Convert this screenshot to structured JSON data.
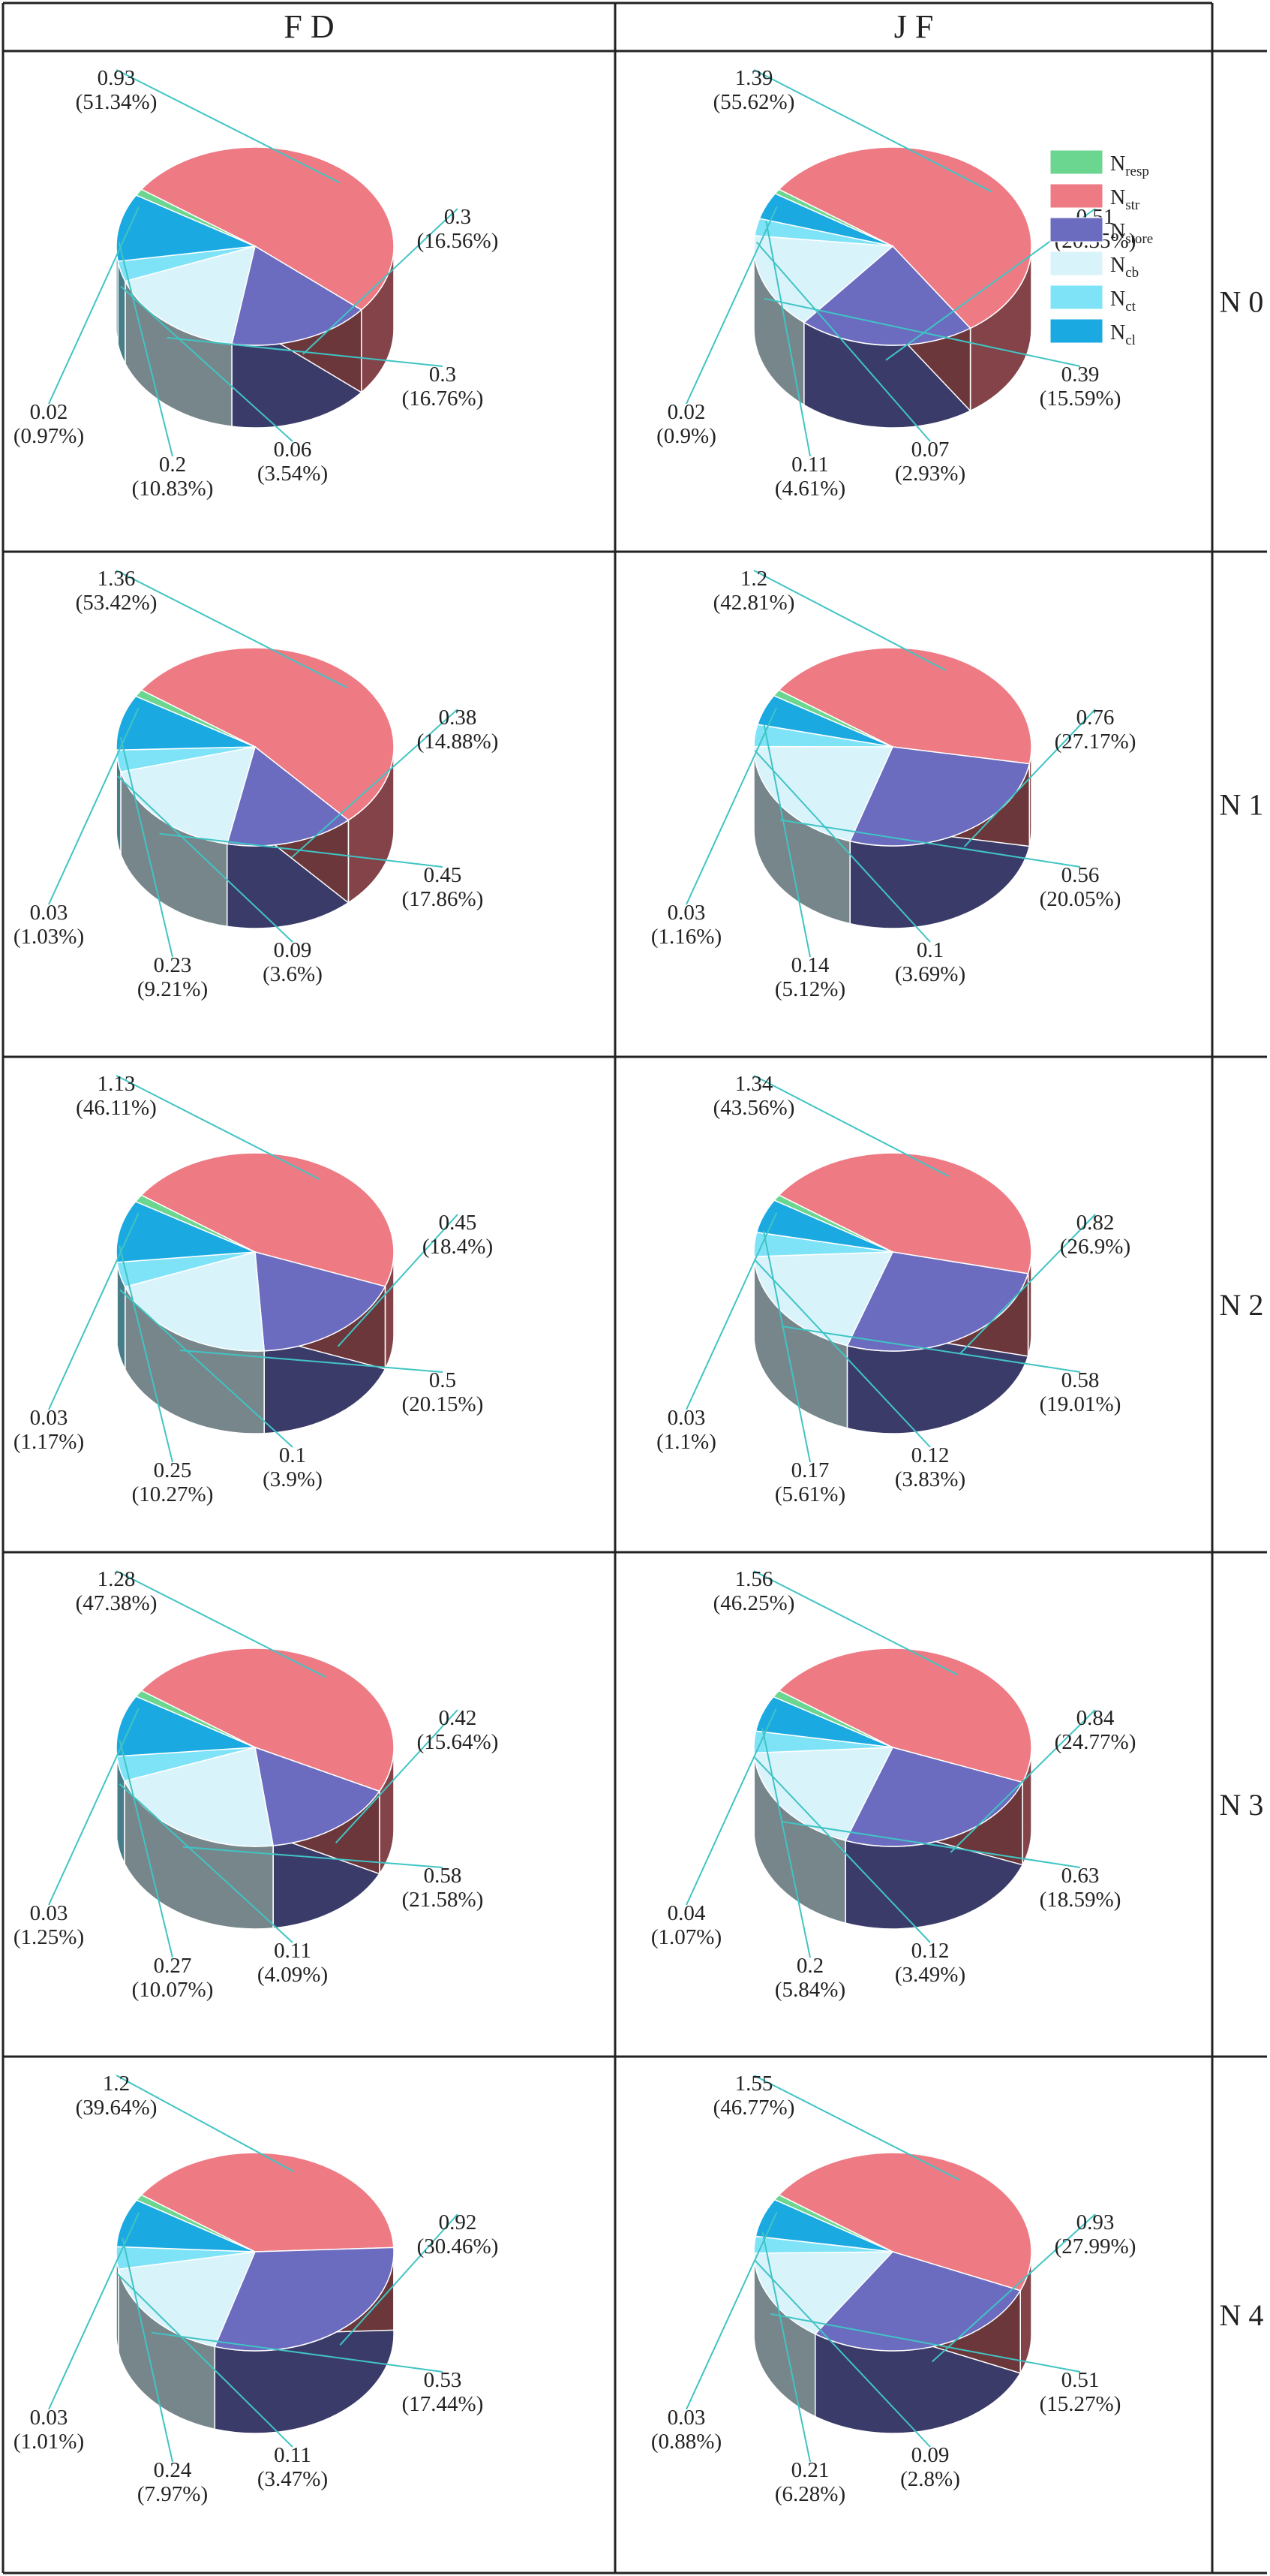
{
  "columns": [
    "F D",
    "J F"
  ],
  "rows": [
    "N 0",
    "N 1",
    "N 2",
    "N 3",
    "N 4"
  ],
  "legend": [
    {
      "base": "N",
      "sub": "resp",
      "color": "#6bd68f"
    },
    {
      "base": "N",
      "sub": "str",
      "color": "#ee7a84"
    },
    {
      "base": "N",
      "sub": "store",
      "color": "#6b6bc0"
    },
    {
      "base": "N",
      "sub": "cb",
      "color": "#d9f3fb"
    },
    {
      "base": "N",
      "sub": "ct",
      "color": "#7fe3f8"
    },
    {
      "base": "N",
      "sub": "cl",
      "color": "#1ba9e1"
    }
  ],
  "chart_data": [
    {
      "type": "pie",
      "column": "F D",
      "row": "N 0",
      "slices": [
        {
          "series": "str",
          "value": 0.93,
          "label": "(51.34%)"
        },
        {
          "series": "store",
          "value": 0.3,
          "label": "(16.56%)"
        },
        {
          "series": "cb",
          "value": 0.3,
          "label": "(16.76%)"
        },
        {
          "series": "ct",
          "value": 0.06,
          "label": "(3.54%)"
        },
        {
          "series": "cl",
          "value": 0.2,
          "label": "(10.83%)"
        },
        {
          "series": "resp",
          "value": 0.02,
          "label": "(0.97%)"
        }
      ]
    },
    {
      "type": "pie",
      "column": "J F",
      "row": "N 0",
      "slices": [
        {
          "series": "str",
          "value": 1.39,
          "label": "(55.62%)"
        },
        {
          "series": "store",
          "value": 0.51,
          "label": "(20.35%)"
        },
        {
          "series": "cb",
          "value": 0.39,
          "label": "(15.59%)"
        },
        {
          "series": "ct",
          "value": 0.07,
          "label": "(2.93%)"
        },
        {
          "series": "cl",
          "value": 0.11,
          "label": "(4.61%)"
        },
        {
          "series": "resp",
          "value": 0.02,
          "label": "(0.9%)"
        }
      ]
    },
    {
      "type": "pie",
      "column": "F D",
      "row": "N 1",
      "slices": [
        {
          "series": "str",
          "value": 1.36,
          "label": "(53.42%)"
        },
        {
          "series": "store",
          "value": 0.38,
          "label": "(14.88%)"
        },
        {
          "series": "cb",
          "value": 0.45,
          "label": "(17.86%)"
        },
        {
          "series": "ct",
          "value": 0.09,
          "label": "(3.6%)"
        },
        {
          "series": "cl",
          "value": 0.23,
          "label": "(9.21%)"
        },
        {
          "series": "resp",
          "value": 0.03,
          "label": "(1.03%)"
        }
      ]
    },
    {
      "type": "pie",
      "column": "J F",
      "row": "N 1",
      "slices": [
        {
          "series": "str",
          "value": 1.2,
          "label": "(42.81%)"
        },
        {
          "series": "store",
          "value": 0.76,
          "label": "(27.17%)"
        },
        {
          "series": "cb",
          "value": 0.56,
          "label": "(20.05%)"
        },
        {
          "series": "ct",
          "value": 0.1,
          "label": "(3.69%)"
        },
        {
          "series": "cl",
          "value": 0.14,
          "label": "(5.12%)"
        },
        {
          "series": "resp",
          "value": 0.03,
          "label": "(1.16%)"
        }
      ]
    },
    {
      "type": "pie",
      "column": "F D",
      "row": "N 2",
      "slices": [
        {
          "series": "str",
          "value": 1.13,
          "label": "(46.11%)"
        },
        {
          "series": "store",
          "value": 0.45,
          "label": "(18.4%)"
        },
        {
          "series": "cb",
          "value": 0.5,
          "label": "(20.15%)"
        },
        {
          "series": "ct",
          "value": 0.1,
          "label": "(3.9%)"
        },
        {
          "series": "cl",
          "value": 0.25,
          "label": "(10.27%)"
        },
        {
          "series": "resp",
          "value": 0.03,
          "label": "(1.17%)"
        }
      ]
    },
    {
      "type": "pie",
      "column": "J F",
      "row": "N 2",
      "slices": [
        {
          "series": "str",
          "value": 1.34,
          "label": "(43.56%)"
        },
        {
          "series": "store",
          "value": 0.82,
          "label": "(26.9%)"
        },
        {
          "series": "cb",
          "value": 0.58,
          "label": "(19.01%)"
        },
        {
          "series": "ct",
          "value": 0.12,
          "label": "(3.83%)"
        },
        {
          "series": "cl",
          "value": 0.17,
          "label": "(5.61%)"
        },
        {
          "series": "resp",
          "value": 0.03,
          "label": "(1.1%)"
        }
      ]
    },
    {
      "type": "pie",
      "column": "F D",
      "row": "N 3",
      "slices": [
        {
          "series": "str",
          "value": 1.28,
          "label": "(47.38%)"
        },
        {
          "series": "store",
          "value": 0.42,
          "label": "(15.64%)"
        },
        {
          "series": "cb",
          "value": 0.58,
          "label": "(21.58%)"
        },
        {
          "series": "ct",
          "value": 0.11,
          "label": "(4.09%)"
        },
        {
          "series": "cl",
          "value": 0.27,
          "label": "(10.07%)"
        },
        {
          "series": "resp",
          "value": 0.03,
          "label": "(1.25%)"
        }
      ]
    },
    {
      "type": "pie",
      "column": "J F",
      "row": "N 3",
      "slices": [
        {
          "series": "str",
          "value": 1.56,
          "label": "(46.25%)"
        },
        {
          "series": "store",
          "value": 0.84,
          "label": "(24.77%)"
        },
        {
          "series": "cb",
          "value": 0.63,
          "label": "(18.59%)"
        },
        {
          "series": "ct",
          "value": 0.12,
          "label": "(3.49%)"
        },
        {
          "series": "cl",
          "value": 0.2,
          "label": "(5.84%)"
        },
        {
          "series": "resp",
          "value": 0.04,
          "label": "(1.07%)"
        }
      ]
    },
    {
      "type": "pie",
      "column": "F D",
      "row": "N 4",
      "slices": [
        {
          "series": "str",
          "value": 1.2,
          "label": "(39.64%)"
        },
        {
          "series": "store",
          "value": 0.92,
          "label": "(30.46%)"
        },
        {
          "series": "cb",
          "value": 0.53,
          "label": "(17.44%)"
        },
        {
          "series": "ct",
          "value": 0.11,
          "label": "(3.47%)"
        },
        {
          "series": "cl",
          "value": 0.24,
          "label": "(7.97%)"
        },
        {
          "series": "resp",
          "value": 0.03,
          "label": "(1.01%)"
        }
      ]
    },
    {
      "type": "pie",
      "column": "J F",
      "row": "N 4",
      "slices": [
        {
          "series": "str",
          "value": 1.55,
          "label": "(46.77%)"
        },
        {
          "series": "store",
          "value": 0.93,
          "label": "(27.99%)"
        },
        {
          "series": "cb",
          "value": 0.51,
          "label": "(15.27%)"
        },
        {
          "series": "ct",
          "value": 0.09,
          "label": "(2.8%)"
        },
        {
          "series": "cl",
          "value": 0.21,
          "label": "(6.28%)"
        },
        {
          "series": "resp",
          "value": 0.03,
          "label": "(0.88%)"
        }
      ]
    }
  ]
}
